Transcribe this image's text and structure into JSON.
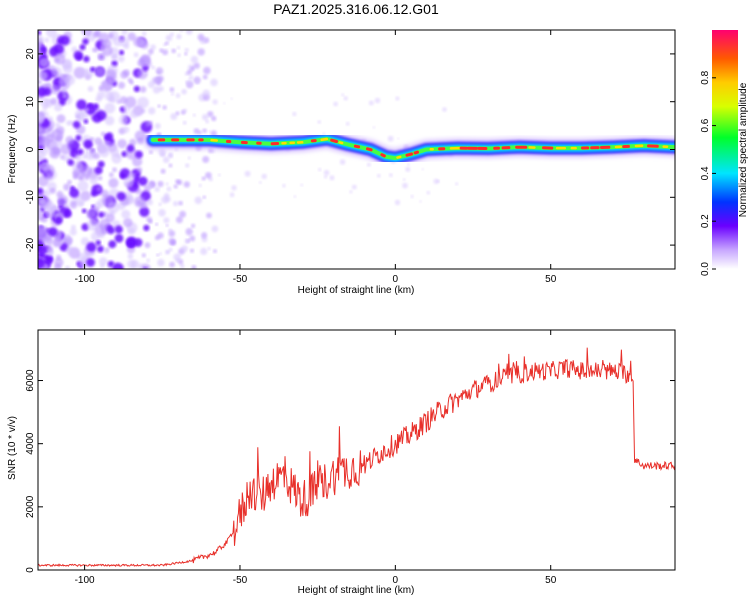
{
  "title": "PAZ1.2025.316.06.12.G01",
  "colors": {
    "snr_line": "#e8302a",
    "axis": "#000000",
    "track_core": "#ff2a2a",
    "noise": "#7a2cff"
  },
  "chart_data": [
    {
      "type": "heatmap",
      "xlabel": "Height of straight line (km)",
      "ylabel": "Frequency (Hz)",
      "xlim": [
        -115,
        90
      ],
      "ylim": [
        -25,
        25
      ],
      "xticks": [
        -100,
        -50,
        0,
        50
      ],
      "xtick_labels": [
        "-100",
        "-50",
        "0",
        "50"
      ],
      "yticks": [
        -20,
        -10,
        0,
        10,
        20
      ],
      "ytick_labels": [
        "-20",
        "-10",
        "0",
        "10",
        "20"
      ],
      "noise_region_x": [
        -115,
        -58
      ],
      "signal_track": {
        "x": [
          -78,
          -70,
          -60,
          -50,
          -40,
          -30,
          -22,
          -15,
          -8,
          -3,
          0,
          5,
          10,
          20,
          30,
          40,
          50,
          60,
          70,
          80,
          90
        ],
        "freq": [
          2.0,
          2.0,
          2.0,
          1.5,
          1.2,
          1.5,
          2.2,
          1.0,
          0.0,
          -1.5,
          -1.8,
          -1.0,
          0.0,
          0.3,
          0.2,
          0.5,
          0.3,
          0.3,
          0.5,
          0.8,
          0.5
        ]
      },
      "colorbar": {
        "label": "Normalized spectral amplitude",
        "range": [
          0,
          1
        ],
        "ticks": [
          0.0,
          0.2,
          0.4,
          0.6,
          0.8
        ],
        "tick_labels": [
          "0.0",
          "0.2",
          "0.4",
          "0.6",
          "0.8"
        ]
      }
    },
    {
      "type": "line",
      "xlabel": "Height of straight line (km)",
      "ylabel": "SNR (10 * v/v)",
      "xlim": [
        -115,
        90
      ],
      "ylim": [
        0,
        7600
      ],
      "xticks": [
        -100,
        -50,
        0,
        50
      ],
      "xtick_labels": [
        "-100",
        "-50",
        "0",
        "50"
      ],
      "yticks": [
        0,
        2000,
        4000,
        6000
      ],
      "ytick_labels": [
        "0",
        "2000",
        "4000",
        "6000"
      ],
      "series": [
        {
          "name": "SNR",
          "x": [
            -115,
            -100,
            -85,
            -75,
            -65,
            -58,
            -54,
            -50,
            -47,
            -43,
            -40,
            -36,
            -33,
            -30,
            -25,
            -20,
            -15,
            -10,
            -5,
            0,
            5,
            10,
            15,
            20,
            25,
            30,
            35,
            40,
            45,
            50,
            55,
            60,
            65,
            70,
            75,
            76.5,
            77,
            80,
            85,
            90
          ],
          "values": [
            150,
            150,
            150,
            150,
            300,
            550,
            900,
            1700,
            2500,
            2300,
            2800,
            3000,
            2600,
            2200,
            2600,
            3000,
            3200,
            3300,
            3700,
            4000,
            4300,
            4700,
            5100,
            5400,
            5700,
            5900,
            6100,
            6200,
            6300,
            6300,
            6400,
            6300,
            6300,
            6300,
            6200,
            6000,
            3500,
            3300,
            3300,
            3300
          ]
        }
      ]
    }
  ]
}
